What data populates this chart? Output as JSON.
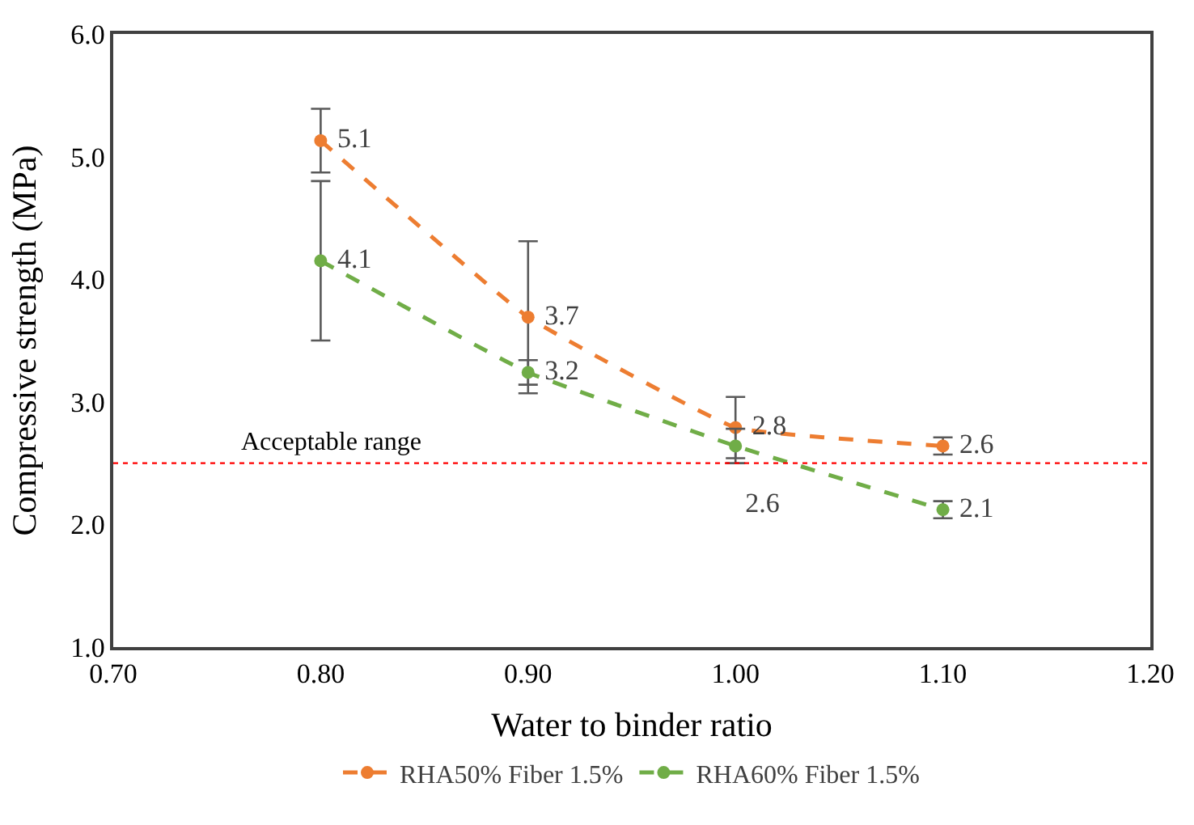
{
  "chart_data": {
    "type": "line",
    "xlabel": "Water to binder ratio",
    "ylabel": "Compressive strength (MPa)",
    "x": [
      0.8,
      0.9,
      1.0,
      1.1
    ],
    "series": [
      {
        "name": "RHA50% Fiber 1.5%",
        "color": "#ed7d31",
        "values": [
          5.13,
          3.69,
          2.79,
          2.64
        ],
        "errors": [
          0.26,
          0.62,
          0.25,
          0.07
        ],
        "value_labels": [
          "5.1",
          "3.7",
          "2.8",
          "2.6"
        ]
      },
      {
        "name": "RHA60% Fiber 1.5%",
        "color": "#70ad47",
        "values": [
          4.15,
          3.24,
          2.64,
          2.12
        ],
        "errors": [
          0.65,
          0.1,
          0.14,
          0.07
        ],
        "value_labels": [
          "4.1",
          "3.2",
          "2.6",
          "2.1"
        ]
      }
    ],
    "xlim": [
      0.7,
      1.2
    ],
    "xticks": [
      {
        "value": 0.7,
        "label": "0.70"
      },
      {
        "value": 0.8,
        "label": "0.80"
      },
      {
        "value": 0.9,
        "label": "0.90"
      },
      {
        "value": 1.0,
        "label": "1.00"
      },
      {
        "value": 1.1,
        "label": "1.10"
      },
      {
        "value": 1.2,
        "label": "1.20"
      }
    ],
    "ylim": [
      1.0,
      6.0
    ],
    "yticks": [
      {
        "value": 1,
        "label": "1.0"
      },
      {
        "value": 2,
        "label": "2.0"
      },
      {
        "value": 3,
        "label": "3.0"
      },
      {
        "value": 4,
        "label": "4.0"
      },
      {
        "value": 5,
        "label": "5.0"
      },
      {
        "value": 6,
        "label": "6.0"
      }
    ],
    "ref_lines": [
      {
        "axis": "y",
        "value": 2.5,
        "label": "Acceptable range",
        "color": "#ff0000",
        "line_style": "dotted"
      }
    ],
    "marker": "circle",
    "line_style": "dashed",
    "legend": "bottom"
  }
}
